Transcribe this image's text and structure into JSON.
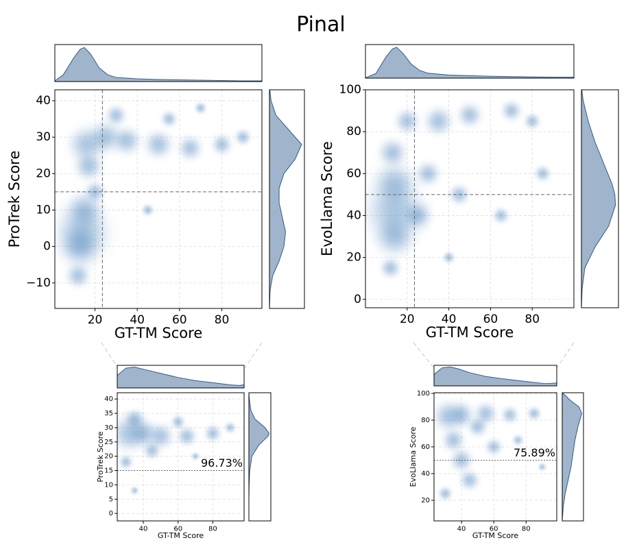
{
  "title": "Pinal",
  "chart_data": [
    {
      "type": "scatter",
      "xlabel": "GT-TM Score",
      "ylabel": "ProTrek Score",
      "xlim": [
        1,
        99
      ],
      "ylim": [
        -17,
        43
      ],
      "xticks": [
        20,
        40,
        60,
        80
      ],
      "yticks": [
        {
          "value": -10,
          "label": "−10"
        },
        0,
        10,
        20,
        30,
        40
      ],
      "vline": 23.5,
      "hline": 15,
      "color": "#3a78b5",
      "fill": "#a0b5cc",
      "edge": "#2e5a87",
      "grid": true,
      "series": [
        {
          "x": [
            14,
            13,
            15,
            16,
            17,
            25,
            35,
            50,
            65,
            80,
            12,
            30,
            55,
            20,
            45,
            90,
            70
          ],
          "values": [
            4,
            0,
            10,
            28,
            22,
            30,
            29,
            28,
            27,
            28,
            -8,
            36,
            35,
            15,
            10,
            30,
            38
          ],
          "sizes": [
            28,
            20,
            18,
            18,
            14,
            16,
            14,
            14,
            12,
            10,
            12,
            10,
            8,
            10,
            6,
            8,
            6
          ]
        }
      ],
      "x_density": {
        "x": [
          1,
          5,
          10,
          13,
          15,
          18,
          22,
          26,
          30,
          40,
          50,
          60,
          70,
          80,
          90,
          99
        ],
        "values": [
          0.02,
          0.2,
          0.7,
          0.95,
          1.0,
          0.8,
          0.4,
          0.2,
          0.12,
          0.08,
          0.06,
          0.05,
          0.04,
          0.03,
          0.02,
          0.02
        ]
      },
      "y_density": {
        "y": [
          -17,
          -12,
          -8,
          -4,
          0,
          4,
          8,
          12,
          16,
          20,
          24,
          28,
          32,
          36,
          40,
          43
        ],
        "values": [
          0,
          0.02,
          0.1,
          0.3,
          0.45,
          0.5,
          0.4,
          0.3,
          0.3,
          0.45,
          0.8,
          1.0,
          0.6,
          0.2,
          0.05,
          0.01
        ]
      }
    },
    {
      "type": "scatter",
      "xlabel": "GT-TM Score",
      "ylabel": "EvoLlama Score",
      "xlim": [
        0,
        100
      ],
      "ylim": [
        -4,
        100
      ],
      "xticks": [
        20,
        40,
        60,
        80
      ],
      "yticks": [
        0,
        20,
        40,
        60,
        80,
        100
      ],
      "vline": 23.5,
      "hline": 50,
      "color": "#3a78b5",
      "fill": "#a0b5cc",
      "edge": "#2e5a87",
      "grid": true,
      "series": [
        {
          "x": [
            14,
            14,
            14,
            13,
            20,
            35,
            50,
            70,
            30,
            45,
            65,
            85,
            12,
            40,
            80,
            25
          ],
          "values": [
            42,
            30,
            55,
            70,
            85,
            85,
            88,
            90,
            60,
            50,
            40,
            60,
            15,
            20,
            85,
            40
          ],
          "sizes": [
            30,
            20,
            22,
            14,
            12,
            14,
            12,
            10,
            12,
            10,
            8,
            8,
            10,
            6,
            8,
            14
          ]
        }
      ],
      "x_density": {
        "x": [
          0,
          5,
          10,
          13,
          15,
          18,
          22,
          26,
          30,
          40,
          50,
          60,
          70,
          80,
          90,
          100
        ],
        "values": [
          0.01,
          0.15,
          0.7,
          0.95,
          1.0,
          0.8,
          0.45,
          0.25,
          0.16,
          0.1,
          0.08,
          0.06,
          0.05,
          0.04,
          0.03,
          0.03
        ]
      },
      "y_density": {
        "y": [
          -4,
          5,
          15,
          25,
          35,
          45,
          50,
          55,
          65,
          75,
          85,
          95,
          100
        ],
        "values": [
          0,
          0.02,
          0.1,
          0.4,
          0.8,
          1.0,
          0.98,
          0.9,
          0.65,
          0.4,
          0.2,
          0.05,
          0.01
        ]
      }
    },
    {
      "type": "scatter",
      "xlabel": "GT-TM Score",
      "ylabel": "ProTrek Score",
      "xlim": [
        25,
        98
      ],
      "ylim": [
        -2.6,
        42.2
      ],
      "xticks": [
        40,
        60,
        80
      ],
      "yticks": [
        0,
        5,
        10,
        15,
        20,
        25,
        30,
        35,
        40
      ],
      "hline": 15,
      "annotation": "96.73%",
      "color": "#3a78b5",
      "fill": "#a0b5cc",
      "edge": "#2e5a87",
      "grid": true,
      "series": [
        {
          "x": [
            32,
            40,
            50,
            65,
            80,
            35,
            45,
            30,
            60,
            90,
            35,
            70
          ],
          "values": [
            28,
            28,
            27,
            27,
            28,
            33,
            22,
            18,
            32,
            30,
            8,
            20
          ],
          "sizes": [
            26,
            20,
            18,
            14,
            12,
            14,
            12,
            10,
            10,
            8,
            6,
            6
          ]
        }
      ],
      "x_density": {
        "x": [
          25,
          30,
          35,
          40,
          50,
          60,
          70,
          80,
          90,
          95,
          98
        ],
        "values": [
          0.6,
          0.95,
          1.0,
          0.9,
          0.7,
          0.5,
          0.35,
          0.25,
          0.15,
          0.12,
          0.15
        ]
      },
      "y_density": {
        "y": [
          -2.6,
          5,
          10,
          15,
          20,
          24,
          27,
          28,
          30,
          33,
          36,
          40,
          42
        ],
        "values": [
          0,
          0,
          0.01,
          0.04,
          0.15,
          0.5,
          0.95,
          1.0,
          0.8,
          0.3,
          0.1,
          0.02,
          0
        ]
      }
    },
    {
      "type": "scatter",
      "xlabel": "GT-TM Score",
      "ylabel": "EvoLlama Score",
      "xlim": [
        23,
        99
      ],
      "ylim": [
        4.6,
        100.5
      ],
      "xticks": [
        40,
        60,
        80
      ],
      "yticks": [
        20,
        40,
        60,
        80,
        100
      ],
      "hline": 50,
      "annotation": "75.89%",
      "color": "#3a78b5",
      "fill": "#a0b5cc",
      "edge": "#2e5a87",
      "grid": true,
      "series": [
        {
          "x": [
            32,
            40,
            55,
            70,
            85,
            35,
            40,
            45,
            60,
            30,
            75,
            90,
            50
          ],
          "values": [
            83,
            84,
            85,
            84,
            85,
            65,
            50,
            35,
            60,
            25,
            65,
            45,
            75
          ],
          "sizes": [
            22,
            18,
            16,
            12,
            10,
            16,
            16,
            14,
            12,
            10,
            8,
            6,
            14
          ]
        }
      ],
      "x_density": {
        "x": [
          23,
          28,
          33,
          38,
          45,
          55,
          65,
          75,
          85,
          92,
          99
        ],
        "values": [
          0.6,
          0.95,
          1.0,
          0.9,
          0.7,
          0.5,
          0.38,
          0.28,
          0.18,
          0.12,
          0.15
        ]
      },
      "y_density": {
        "y": [
          4.6,
          15,
          25,
          35,
          45,
          55,
          65,
          75,
          85,
          90,
          95,
          100
        ],
        "values": [
          0,
          0.05,
          0.15,
          0.3,
          0.45,
          0.55,
          0.65,
          0.8,
          1.0,
          0.85,
          0.4,
          0.05
        ]
      }
    }
  ]
}
